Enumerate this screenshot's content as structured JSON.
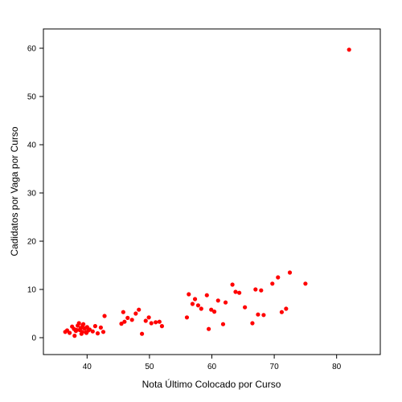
{
  "chart_data": {
    "type": "scatter",
    "title": "",
    "xlabel": "Nota Último Colocado por Curso",
    "ylabel": "Cadidatos por Vaga por Curso",
    "xlim": [
      33,
      87
    ],
    "ylim": [
      -3.5,
      64
    ],
    "xticks": [
      40,
      50,
      60,
      70,
      80
    ],
    "yticks": [
      0,
      10,
      20,
      30,
      40,
      50,
      60
    ],
    "grid": false,
    "legend": "none",
    "point_color": "#ff0000",
    "x": [
      36.5,
      36.8,
      37.2,
      37.6,
      37.9,
      38.2,
      38.5,
      38.8,
      39.0,
      39.2,
      39.4,
      39.6,
      39.8,
      40.0,
      40.2,
      38.0,
      38.7,
      39.3,
      39.9,
      40.4,
      40.9,
      41.3,
      41.7,
      42.2,
      42.6,
      42.8,
      39.1,
      38.3,
      45.5,
      45.8,
      46.0,
      46.5,
      47.2,
      47.8,
      48.3,
      48.8,
      49.4,
      49.9,
      50.3,
      51.0,
      51.6,
      52.0,
      56.0,
      56.3,
      56.9,
      57.3,
      57.8,
      58.3,
      59.2,
      59.5,
      59.9,
      60.4,
      61.0,
      61.8,
      62.2,
      63.3,
      63.8,
      64.4,
      65.3,
      66.5,
      67.0,
      67.4,
      67.9,
      68.3,
      69.7,
      70.6,
      71.2,
      71.9,
      72.5,
      75.0,
      82.0
    ],
    "y": [
      1.2,
      1.5,
      1.0,
      2.3,
      1.8,
      1.4,
      2.5,
      1.6,
      2.0,
      1.2,
      2.8,
      1.9,
      1.1,
      2.2,
      1.5,
      0.4,
      3.0,
      2.6,
      1.0,
      1.7,
      1.3,
      2.4,
      0.9,
      2.1,
      1.2,
      4.5,
      0.8,
      1.6,
      2.9,
      5.3,
      3.3,
      4.1,
      3.7,
      5.0,
      5.8,
      0.8,
      3.5,
      4.2,
      3.0,
      3.2,
      3.3,
      2.4,
      4.2,
      9.0,
      7.0,
      8.0,
      6.7,
      6.0,
      8.8,
      1.8,
      5.8,
      5.4,
      7.7,
      2.8,
      7.3,
      11.0,
      9.5,
      9.3,
      6.3,
      3.0,
      10.0,
      4.8,
      9.8,
      4.7,
      11.2,
      12.5,
      5.3,
      6.0,
      13.5,
      11.2,
      59.7
    ]
  }
}
